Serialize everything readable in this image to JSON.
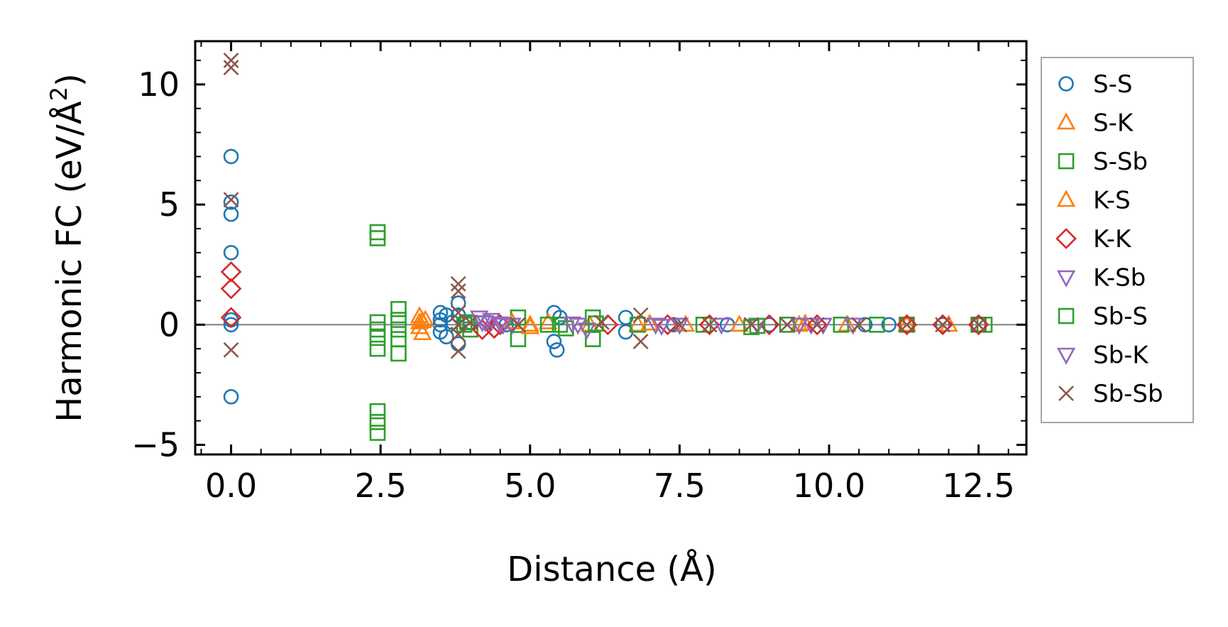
{
  "chart_data": {
    "type": "scatter",
    "title": "",
    "xlabel": "Distance (Å)",
    "ylabel_main": "Harmonic FC (eV/Å",
    "ylabel_sup": "2",
    "ylabel_close": ")",
    "xlim": [
      -0.6,
      13.3
    ],
    "ylim": [
      -5.4,
      11.8
    ],
    "xticks": [
      0.0,
      2.5,
      5.0,
      7.5,
      10.0,
      12.5
    ],
    "xtick_labels": [
      "0.0",
      "2.5",
      "5.0",
      "7.5",
      "10.0",
      "12.5"
    ],
    "yticks": [
      -5,
      0,
      5,
      10
    ],
    "ytick_labels": [
      "−5",
      "0",
      "5",
      "10"
    ],
    "grid": false,
    "zero_line": true,
    "legend_position": "outside-right",
    "series": [
      {
        "name": "S-S",
        "marker": "circle",
        "color": "#1f77b4",
        "points": [
          [
            0,
            7.0
          ],
          [
            0,
            5.1
          ],
          [
            0,
            4.6
          ],
          [
            0,
            3.0
          ],
          [
            0,
            0.2
          ],
          [
            0,
            0.0
          ],
          [
            0,
            -3.0
          ],
          [
            3.5,
            0.5
          ],
          [
            3.5,
            0.2
          ],
          [
            3.5,
            0.0
          ],
          [
            3.5,
            -0.3
          ],
          [
            3.6,
            0.4
          ],
          [
            3.6,
            -0.5
          ],
          [
            3.7,
            0.1
          ],
          [
            3.8,
            0.9
          ],
          [
            3.8,
            0.4
          ],
          [
            3.8,
            -0.8
          ],
          [
            4.0,
            0.1
          ],
          [
            4.3,
            0.1
          ],
          [
            4.6,
            0.0
          ],
          [
            5.4,
            0.5
          ],
          [
            5.4,
            -0.7
          ],
          [
            5.45,
            -1.05
          ],
          [
            5.5,
            0.3
          ],
          [
            6.6,
            0.3
          ],
          [
            6.6,
            -0.3
          ],
          [
            7.4,
            0.0
          ],
          [
            8.3,
            0.0
          ],
          [
            9.0,
            0.0
          ],
          [
            10.6,
            0.0
          ],
          [
            11.0,
            0.0
          ],
          [
            11.3,
            0.0
          ],
          [
            11.9,
            0.0
          ],
          [
            12.5,
            0.0
          ]
        ]
      },
      {
        "name": "S-K",
        "marker": "triangle-up",
        "color": "#ff7f0e",
        "points": [
          [
            3.15,
            0.35
          ],
          [
            3.15,
            0.1
          ],
          [
            3.15,
            -0.1
          ],
          [
            3.2,
            -0.35
          ],
          [
            3.25,
            0.2
          ],
          [
            5.0,
            0.0
          ],
          [
            5.3,
            0.1
          ],
          [
            6.0,
            0.0
          ],
          [
            6.8,
            0.0
          ],
          [
            7.6,
            0.0
          ],
          [
            8.5,
            0.0
          ],
          [
            9.5,
            0.0
          ],
          [
            10.3,
            0.0
          ],
          [
            11.3,
            0.0
          ],
          [
            12.0,
            0.0
          ]
        ]
      },
      {
        "name": "S-Sb",
        "marker": "square",
        "color": "#2ca02c",
        "points": [
          [
            2.45,
            3.85
          ],
          [
            2.45,
            3.6
          ],
          [
            2.45,
            0.1
          ],
          [
            2.45,
            -0.2
          ],
          [
            2.45,
            -0.55
          ],
          [
            2.45,
            -1.0
          ],
          [
            2.45,
            -3.6
          ],
          [
            2.45,
            -4.05
          ],
          [
            2.45,
            -4.5
          ],
          [
            2.8,
            0.65
          ],
          [
            2.8,
            0.2
          ],
          [
            2.8,
            -0.2
          ],
          [
            2.8,
            -0.6
          ],
          [
            2.8,
            -1.2
          ],
          [
            3.95,
            0.1
          ],
          [
            4.0,
            -0.2
          ],
          [
            4.8,
            0.3
          ],
          [
            4.8,
            -0.6
          ],
          [
            5.3,
            0.0
          ],
          [
            5.6,
            -0.15
          ],
          [
            6.05,
            0.3
          ],
          [
            6.05,
            -0.6
          ],
          [
            6.8,
            0.0
          ],
          [
            7.9,
            0.0
          ],
          [
            8.7,
            -0.1
          ],
          [
            9.3,
            0.0
          ],
          [
            10.2,
            0.0
          ],
          [
            10.8,
            0.0
          ],
          [
            11.3,
            0.0
          ],
          [
            12.5,
            0.0
          ],
          [
            12.6,
            0.0
          ]
        ]
      },
      {
        "name": "K-S",
        "marker": "triangle-up",
        "color": "#ff7f0e",
        "points": [
          [
            3.2,
            0.15
          ],
          [
            4.7,
            0.1
          ],
          [
            5.0,
            -0.1
          ],
          [
            7.0,
            0.05
          ],
          [
            9.6,
            0.05
          ]
        ]
      },
      {
        "name": "K-K",
        "marker": "diamond",
        "color": "#d62728",
        "points": [
          [
            0,
            2.2
          ],
          [
            0,
            1.5
          ],
          [
            0,
            0.3
          ],
          [
            4.2,
            -0.2
          ],
          [
            4.4,
            -0.15
          ],
          [
            4.5,
            0.0
          ],
          [
            6.3,
            0.0
          ],
          [
            7.3,
            0.0
          ],
          [
            8.0,
            0.0
          ],
          [
            9.0,
            0.0
          ],
          [
            9.8,
            0.0
          ],
          [
            11.3,
            0.0
          ],
          [
            11.9,
            0.0
          ],
          [
            12.5,
            0.0
          ]
        ]
      },
      {
        "name": "K-Sb",
        "marker": "triangle-down",
        "color": "#9467bd",
        "points": [
          [
            4.15,
            0.3
          ],
          [
            4.25,
            0.1
          ],
          [
            4.35,
            0.2
          ],
          [
            4.5,
            0.05
          ],
          [
            4.7,
            0.0
          ],
          [
            5.8,
            0.0
          ],
          [
            5.95,
            -0.2
          ],
          [
            7.1,
            0.0
          ],
          [
            7.5,
            0.0
          ],
          [
            8.2,
            0.0
          ],
          [
            8.8,
            0.0
          ],
          [
            9.5,
            0.0
          ],
          [
            9.9,
            0.0
          ],
          [
            10.4,
            0.0
          ]
        ]
      },
      {
        "name": "Sb-S",
        "marker": "square",
        "color": "#2ca02c",
        "points": [
          [
            3.9,
            0.0
          ],
          [
            5.5,
            0.0
          ],
          [
            6.1,
            0.05
          ],
          [
            8.8,
            -0.05
          ]
        ]
      },
      {
        "name": "Sb-K",
        "marker": "triangle-down",
        "color": "#9467bd",
        "points": [
          [
            4.2,
            0.1
          ],
          [
            4.55,
            0.0
          ],
          [
            5.7,
            0.05
          ],
          [
            7.2,
            -0.05
          ],
          [
            9.7,
            0.0
          ]
        ]
      },
      {
        "name": "Sb-Sb",
        "marker": "x",
        "color": "#8c564b",
        "points": [
          [
            0,
            11.0
          ],
          [
            0,
            10.7
          ],
          [
            0,
            5.2
          ],
          [
            0,
            -1.05
          ],
          [
            3.8,
            1.7
          ],
          [
            3.8,
            1.4
          ],
          [
            3.8,
            0.5
          ],
          [
            3.8,
            0.0
          ],
          [
            3.8,
            -0.4
          ],
          [
            3.8,
            -1.1
          ],
          [
            4.0,
            0.1
          ],
          [
            4.8,
            0.0
          ],
          [
            6.2,
            0.1
          ],
          [
            6.85,
            0.4
          ],
          [
            6.85,
            -0.7
          ],
          [
            7.5,
            0.0
          ],
          [
            8.0,
            0.0
          ],
          [
            8.7,
            0.0
          ],
          [
            9.3,
            0.0
          ],
          [
            9.8,
            0.0
          ],
          [
            10.5,
            0.0
          ],
          [
            11.3,
            0.0
          ],
          [
            11.9,
            0.0
          ],
          [
            12.5,
            0.0
          ]
        ]
      }
    ]
  }
}
